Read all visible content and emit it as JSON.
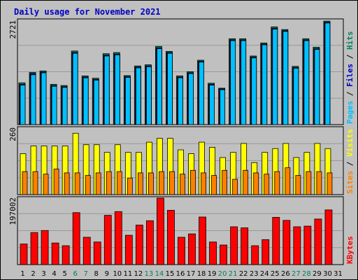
{
  "title": "Daily usage for November 2021",
  "colors": {
    "hits": "#00805c",
    "files": "#0000c0",
    "pages": "#00c0ff",
    "visits": "#ffff00",
    "sites": "#ff8000",
    "kbytes": "#ff0000",
    "weekend_tick": "#00805c",
    "weekday_tick": "#000000",
    "panel_bg": "#c0c0c0"
  },
  "panels": {
    "top": {
      "max_label": "2721",
      "legend": [
        "Pages",
        "Files",
        "Hits"
      ]
    },
    "middle": {
      "max_label": "260",
      "legend": [
        "Sites",
        "Visits"
      ]
    },
    "bottom": {
      "max_label": "197002",
      "legend": [
        "KBytes"
      ]
    }
  },
  "chart_data": {
    "type": "bar",
    "title": "Daily usage for November 2021",
    "categories": [
      "1",
      "2",
      "3",
      "4",
      "5",
      "6",
      "7",
      "8",
      "9",
      "10",
      "11",
      "12",
      "13",
      "14",
      "15",
      "16",
      "17",
      "18",
      "19",
      "20",
      "21",
      "22",
      "23",
      "24",
      "25",
      "26",
      "27",
      "28",
      "29",
      "30",
      "31"
    ],
    "weekend_days": [
      "6",
      "7",
      "13",
      "14",
      "20",
      "21",
      "27",
      "28"
    ],
    "panels": [
      {
        "name": "top",
        "ymax_label": "2721",
        "ylim": [
          0,
          2721
        ],
        "series": [
          {
            "name": "Hits",
            "values": [
              1090,
              1360,
              1400,
              1050,
              1020,
              1920,
              1270,
              1210,
              1850,
              1880,
              1280,
              1530,
              1560,
              2040,
              1910,
              1270,
              1380,
              1680,
              1080,
              950,
              2240,
              2240,
              1790,
              2130,
              2550,
              2480,
              1520,
              2240,
              2020,
              2700,
              0
            ]
          },
          {
            "name": "Files",
            "values": [
              1050,
              1330,
              1370,
              1020,
              990,
              1880,
              1240,
              1180,
              1810,
              1840,
              1250,
              1500,
              1530,
              2000,
              1880,
              1240,
              1350,
              1650,
              1050,
              930,
              2210,
              2210,
              1760,
              2100,
              2510,
              2450,
              1490,
              2210,
              1980,
              2670,
              0
            ]
          },
          {
            "name": "Pages",
            "values": [
              1030,
              1300,
              1350,
              1000,
              970,
              1860,
              1220,
              1160,
              1790,
              1820,
              1230,
              1480,
              1510,
              1980,
              1860,
              1220,
              1330,
              1630,
              1030,
              910,
              2190,
              2190,
              1740,
              2080,
              2490,
              2430,
              1470,
              2190,
              1960,
              2650,
              0
            ]
          }
        ]
      },
      {
        "name": "middle",
        "ymax_label": "260",
        "ylim": [
          0,
          260
        ],
        "series": [
          {
            "name": "Visits",
            "values": [
              160,
              190,
              190,
              190,
              190,
              240,
              195,
              195,
              165,
              195,
              165,
              165,
              205,
              220,
              220,
              175,
              160,
              205,
              185,
              145,
              165,
              200,
              125,
              165,
              180,
              200,
              145,
              165,
              200,
              180,
              0
            ]
          },
          {
            "name": "Sites",
            "values": [
              90,
              90,
              80,
              100,
              85,
              85,
              75,
              85,
              90,
              90,
              65,
              85,
              85,
              90,
              90,
              80,
              95,
              85,
              75,
              95,
              60,
              95,
              85,
              80,
              90,
              105,
              75,
              90,
              90,
              85,
              0
            ]
          }
        ]
      },
      {
        "name": "bottom",
        "ymax_label": "197002",
        "ylim": [
          0,
          197002
        ],
        "series": [
          {
            "name": "KBytes",
            "values": [
              61000,
              95000,
              101000,
              64000,
              56000,
              154000,
              81000,
              67000,
              146000,
              157000,
              87000,
              117000,
              130000,
              197000,
              161000,
              81000,
              91000,
              141000,
              67000,
              58000,
              112000,
              109000,
              56000,
              74000,
              140000,
              131000,
              112000,
              114000,
              135000,
              162000,
              0
            ]
          }
        ]
      }
    ]
  }
}
